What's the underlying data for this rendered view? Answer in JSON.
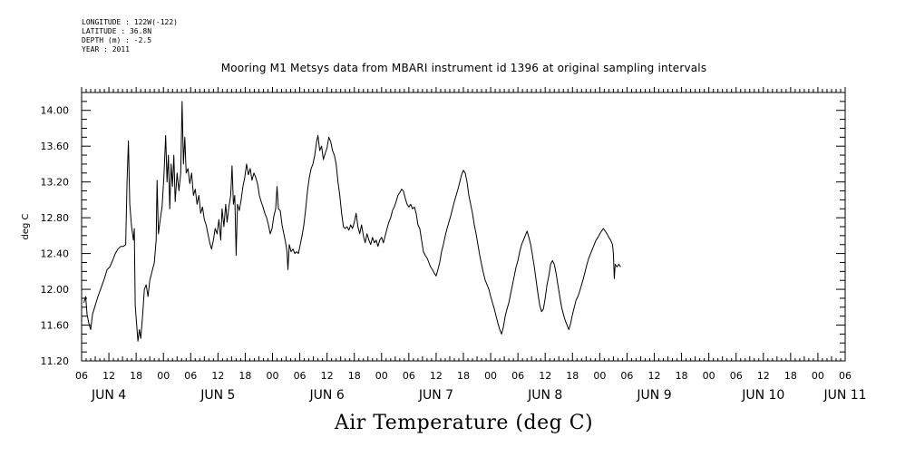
{
  "header": {
    "lines": [
      "LONGITUDE : 122W(-122)",
      "LATITUDE : 36.8N",
      "DEPTH (m) : -2.5",
      "YEAR : 2011"
    ]
  },
  "chart_data": {
    "type": "line",
    "title": "Mooring M1 Metsys data from MBARI instrument id 1396 at original sampling intervals",
    "xlabel": "Air Temperature (deg C)",
    "ylabel": "deg C",
    "ylim": [
      11.2,
      14.2
    ],
    "yticks": [
      "11.20",
      "11.60",
      "12.00",
      "12.40",
      "12.80",
      "13.20",
      "13.60",
      "14.00"
    ],
    "xlim_hours": [
      0,
      168
    ],
    "hour_ticks": [
      "06",
      "12",
      "18",
      "00",
      "06",
      "12",
      "18",
      "00",
      "06",
      "12",
      "18",
      "00",
      "06",
      "12",
      "18",
      "00",
      "06",
      "12",
      "18",
      "00",
      "06",
      "12",
      "18",
      "00",
      "06",
      "12",
      "18",
      "00",
      "06"
    ],
    "day_labels": [
      "JUN 4",
      "JUN 5",
      "JUN 6",
      "JUN 7",
      "JUN 8",
      "JUN 9",
      "JUN 10",
      "JUN 11"
    ],
    "grid": false,
    "series": [
      {
        "color": "#000000",
        "points": [
          [
            0.5,
            11.85
          ],
          [
            0.9,
            11.92
          ],
          [
            1.2,
            11.72
          ],
          [
            1.6,
            11.62
          ],
          [
            2.0,
            11.55
          ],
          [
            2.4,
            11.72
          ],
          [
            3.0,
            11.82
          ],
          [
            3.6,
            11.92
          ],
          [
            4.3,
            12.02
          ],
          [
            5.0,
            12.12
          ],
          [
            5.6,
            12.22
          ],
          [
            6.2,
            12.25
          ],
          [
            6.8,
            12.32
          ],
          [
            7.4,
            12.4
          ],
          [
            8.0,
            12.45
          ],
          [
            8.6,
            12.48
          ],
          [
            9.2,
            12.48
          ],
          [
            9.7,
            12.5
          ],
          [
            10.0,
            13.2
          ],
          [
            10.3,
            13.66
          ],
          [
            10.6,
            12.95
          ],
          [
            11.0,
            12.7
          ],
          [
            11.4,
            12.55
          ],
          [
            11.6,
            12.68
          ],
          [
            11.8,
            11.82
          ],
          [
            12.1,
            11.62
          ],
          [
            12.4,
            11.42
          ],
          [
            12.7,
            11.55
          ],
          [
            13.0,
            11.45
          ],
          [
            13.4,
            11.7
          ],
          [
            13.8,
            12.0
          ],
          [
            14.2,
            12.05
          ],
          [
            14.6,
            11.92
          ],
          [
            15.0,
            12.1
          ],
          [
            15.5,
            12.2
          ],
          [
            16.0,
            12.3
          ],
          [
            16.4,
            12.55
          ],
          [
            16.6,
            13.22
          ],
          [
            16.9,
            12.62
          ],
          [
            17.3,
            12.78
          ],
          [
            17.7,
            12.92
          ],
          [
            18.1,
            13.25
          ],
          [
            18.5,
            13.72
          ],
          [
            18.8,
            13.2
          ],
          [
            19.1,
            13.5
          ],
          [
            19.4,
            12.9
          ],
          [
            19.7,
            13.4
          ],
          [
            20.0,
            13.15
          ],
          [
            20.3,
            13.5
          ],
          [
            20.6,
            12.98
          ],
          [
            21.0,
            13.3
          ],
          [
            21.4,
            13.1
          ],
          [
            21.8,
            13.3
          ],
          [
            22.1,
            14.1
          ],
          [
            22.4,
            13.4
          ],
          [
            22.7,
            13.7
          ],
          [
            23.0,
            13.3
          ],
          [
            23.4,
            13.35
          ],
          [
            23.8,
            13.18
          ],
          [
            24.2,
            13.3
          ],
          [
            24.6,
            13.05
          ],
          [
            25.0,
            13.12
          ],
          [
            25.4,
            12.95
          ],
          [
            25.8,
            13.05
          ],
          [
            26.2,
            12.85
          ],
          [
            26.6,
            12.92
          ],
          [
            27.0,
            12.78
          ],
          [
            27.4,
            12.72
          ],
          [
            27.8,
            12.62
          ],
          [
            28.2,
            12.52
          ],
          [
            28.6,
            12.45
          ],
          [
            29.0,
            12.55
          ],
          [
            29.4,
            12.68
          ],
          [
            29.8,
            12.62
          ],
          [
            30.2,
            12.78
          ],
          [
            30.6,
            12.55
          ],
          [
            30.9,
            12.9
          ],
          [
            31.3,
            12.7
          ],
          [
            31.7,
            12.95
          ],
          [
            32.0,
            12.75
          ],
          [
            32.4,
            12.92
          ],
          [
            32.8,
            13.05
          ],
          [
            33.1,
            13.38
          ],
          [
            33.4,
            12.95
          ],
          [
            33.7,
            13.05
          ],
          [
            34.0,
            12.38
          ],
          [
            34.3,
            12.95
          ],
          [
            34.7,
            12.88
          ],
          [
            35.1,
            13.0
          ],
          [
            35.5,
            13.15
          ],
          [
            35.9,
            13.25
          ],
          [
            36.3,
            13.4
          ],
          [
            36.7,
            13.28
          ],
          [
            37.1,
            13.35
          ],
          [
            37.5,
            13.22
          ],
          [
            37.9,
            13.3
          ],
          [
            38.3,
            13.25
          ],
          [
            38.7,
            13.18
          ],
          [
            39.1,
            13.05
          ],
          [
            39.5,
            12.98
          ],
          [
            39.9,
            12.92
          ],
          [
            40.3,
            12.85
          ],
          [
            40.7,
            12.8
          ],
          [
            41.1,
            12.72
          ],
          [
            41.5,
            12.62
          ],
          [
            41.9,
            12.68
          ],
          [
            42.3,
            12.82
          ],
          [
            42.7,
            12.9
          ],
          [
            43.0,
            13.15
          ],
          [
            43.3,
            12.9
          ],
          [
            43.7,
            12.88
          ],
          [
            44.1,
            12.72
          ],
          [
            44.5,
            12.62
          ],
          [
            44.9,
            12.52
          ],
          [
            45.2,
            12.42
          ],
          [
            45.4,
            12.22
          ],
          [
            45.7,
            12.5
          ],
          [
            46.1,
            12.42
          ],
          [
            46.5,
            12.45
          ],
          [
            46.9,
            12.4
          ],
          [
            47.3,
            12.42
          ],
          [
            47.7,
            12.4
          ],
          [
            48.1,
            12.5
          ],
          [
            48.5,
            12.6
          ],
          [
            48.9,
            12.72
          ],
          [
            49.3,
            12.9
          ],
          [
            49.7,
            13.1
          ],
          [
            50.1,
            13.25
          ],
          [
            50.5,
            13.35
          ],
          [
            50.9,
            13.4
          ],
          [
            51.3,
            13.5
          ],
          [
            51.7,
            13.65
          ],
          [
            52.0,
            13.72
          ],
          [
            52.4,
            13.55
          ],
          [
            52.8,
            13.6
          ],
          [
            53.2,
            13.45
          ],
          [
            53.6,
            13.52
          ],
          [
            54.0,
            13.58
          ],
          [
            54.4,
            13.7
          ],
          [
            54.8,
            13.65
          ],
          [
            55.2,
            13.55
          ],
          [
            55.6,
            13.5
          ],
          [
            56.0,
            13.4
          ],
          [
            56.4,
            13.2
          ],
          [
            56.8,
            13.05
          ],
          [
            57.2,
            12.85
          ],
          [
            57.6,
            12.7
          ],
          [
            58.0,
            12.68
          ],
          [
            58.4,
            12.7
          ],
          [
            58.8,
            12.66
          ],
          [
            59.2,
            12.72
          ],
          [
            59.6,
            12.68
          ],
          [
            60.0,
            12.75
          ],
          [
            60.4,
            12.85
          ],
          [
            60.8,
            12.7
          ],
          [
            61.2,
            12.62
          ],
          [
            61.6,
            12.72
          ],
          [
            62.0,
            12.6
          ],
          [
            62.4,
            12.52
          ],
          [
            62.8,
            12.62
          ],
          [
            63.2,
            12.55
          ],
          [
            63.6,
            12.5
          ],
          [
            64.0,
            12.58
          ],
          [
            64.4,
            12.52
          ],
          [
            64.8,
            12.55
          ],
          [
            65.2,
            12.48
          ],
          [
            65.6,
            12.55
          ],
          [
            66.0,
            12.58
          ],
          [
            66.4,
            12.52
          ],
          [
            66.8,
            12.6
          ],
          [
            67.2,
            12.68
          ],
          [
            67.6,
            12.75
          ],
          [
            68.0,
            12.8
          ],
          [
            68.4,
            12.88
          ],
          [
            68.8,
            12.92
          ],
          [
            69.2,
            12.98
          ],
          [
            69.6,
            13.05
          ],
          [
            70.0,
            13.08
          ],
          [
            70.4,
            13.12
          ],
          [
            70.8,
            13.1
          ],
          [
            71.2,
            13.02
          ],
          [
            71.6,
            12.95
          ],
          [
            72.0,
            12.92
          ],
          [
            72.4,
            12.95
          ],
          [
            72.8,
            12.9
          ],
          [
            73.2,
            12.92
          ],
          [
            73.6,
            12.85
          ],
          [
            74.0,
            12.72
          ],
          [
            74.4,
            12.68
          ],
          [
            74.8,
            12.55
          ],
          [
            75.2,
            12.42
          ],
          [
            75.6,
            12.38
          ],
          [
            76.0,
            12.35
          ],
          [
            76.4,
            12.3
          ],
          [
            76.8,
            12.25
          ],
          [
            77.2,
            12.22
          ],
          [
            77.6,
            12.18
          ],
          [
            78.0,
            12.15
          ],
          [
            78.4,
            12.22
          ],
          [
            78.8,
            12.3
          ],
          [
            79.2,
            12.42
          ],
          [
            79.6,
            12.5
          ],
          [
            80.0,
            12.6
          ],
          [
            80.4,
            12.68
          ],
          [
            80.8,
            12.75
          ],
          [
            81.2,
            12.82
          ],
          [
            81.6,
            12.9
          ],
          [
            82.0,
            12.98
          ],
          [
            82.4,
            13.05
          ],
          [
            82.8,
            13.12
          ],
          [
            83.2,
            13.2
          ],
          [
            83.6,
            13.28
          ],
          [
            84.0,
            13.33
          ],
          [
            84.4,
            13.3
          ],
          [
            84.8,
            13.2
          ],
          [
            85.2,
            13.05
          ],
          [
            85.6,
            12.95
          ],
          [
            86.0,
            12.85
          ],
          [
            86.4,
            12.72
          ],
          [
            86.8,
            12.62
          ],
          [
            87.2,
            12.5
          ],
          [
            87.6,
            12.38
          ],
          [
            88.0,
            12.28
          ],
          [
            88.4,
            12.18
          ],
          [
            88.8,
            12.1
          ],
          [
            89.2,
            12.05
          ],
          [
            89.6,
            12.0
          ],
          [
            90.0,
            11.92
          ],
          [
            90.4,
            11.85
          ],
          [
            90.8,
            11.78
          ],
          [
            91.2,
            11.7
          ],
          [
            91.6,
            11.62
          ],
          [
            92.0,
            11.55
          ],
          [
            92.4,
            11.5
          ],
          [
            92.8,
            11.58
          ],
          [
            93.2,
            11.7
          ],
          [
            93.6,
            11.78
          ],
          [
            94.0,
            11.85
          ],
          [
            94.4,
            11.95
          ],
          [
            94.8,
            12.05
          ],
          [
            95.2,
            12.15
          ],
          [
            95.6,
            12.25
          ],
          [
            96.0,
            12.32
          ],
          [
            96.4,
            12.42
          ],
          [
            96.8,
            12.5
          ],
          [
            97.2,
            12.55
          ],
          [
            97.6,
            12.6
          ],
          [
            98.0,
            12.65
          ],
          [
            98.4,
            12.58
          ],
          [
            98.8,
            12.5
          ],
          [
            99.2,
            12.38
          ],
          [
            99.6,
            12.25
          ],
          [
            100.0,
            12.1
          ],
          [
            100.4,
            11.95
          ],
          [
            100.8,
            11.82
          ],
          [
            101.2,
            11.75
          ],
          [
            101.6,
            11.78
          ],
          [
            102.0,
            11.9
          ],
          [
            102.4,
            12.05
          ],
          [
            102.8,
            12.15
          ],
          [
            103.2,
            12.28
          ],
          [
            103.6,
            12.32
          ],
          [
            104.0,
            12.28
          ],
          [
            104.4,
            12.18
          ],
          [
            104.8,
            12.05
          ],
          [
            105.2,
            11.92
          ],
          [
            105.6,
            11.8
          ],
          [
            106.0,
            11.72
          ],
          [
            106.4,
            11.65
          ],
          [
            106.8,
            11.6
          ],
          [
            107.2,
            11.55
          ],
          [
            107.6,
            11.62
          ],
          [
            108.0,
            11.72
          ],
          [
            108.4,
            11.8
          ],
          [
            108.8,
            11.88
          ],
          [
            109.2,
            11.92
          ],
          [
            109.6,
            11.98
          ],
          [
            110.0,
            12.05
          ],
          [
            110.4,
            12.12
          ],
          [
            110.8,
            12.2
          ],
          [
            111.2,
            12.28
          ],
          [
            111.6,
            12.35
          ],
          [
            112.0,
            12.4
          ],
          [
            112.4,
            12.45
          ],
          [
            112.8,
            12.5
          ],
          [
            113.2,
            12.55
          ],
          [
            113.6,
            12.58
          ],
          [
            114.0,
            12.62
          ],
          [
            114.4,
            12.65
          ],
          [
            114.8,
            12.68
          ],
          [
            115.2,
            12.65
          ],
          [
            115.6,
            12.62
          ],
          [
            116.0,
            12.58
          ],
          [
            116.4,
            12.55
          ],
          [
            116.8,
            12.5
          ],
          [
            117.0,
            12.4
          ],
          [
            117.2,
            12.12
          ],
          [
            117.4,
            12.28
          ],
          [
            117.8,
            12.25
          ],
          [
            118.2,
            12.28
          ],
          [
            118.6,
            12.25
          ]
        ]
      }
    ]
  }
}
